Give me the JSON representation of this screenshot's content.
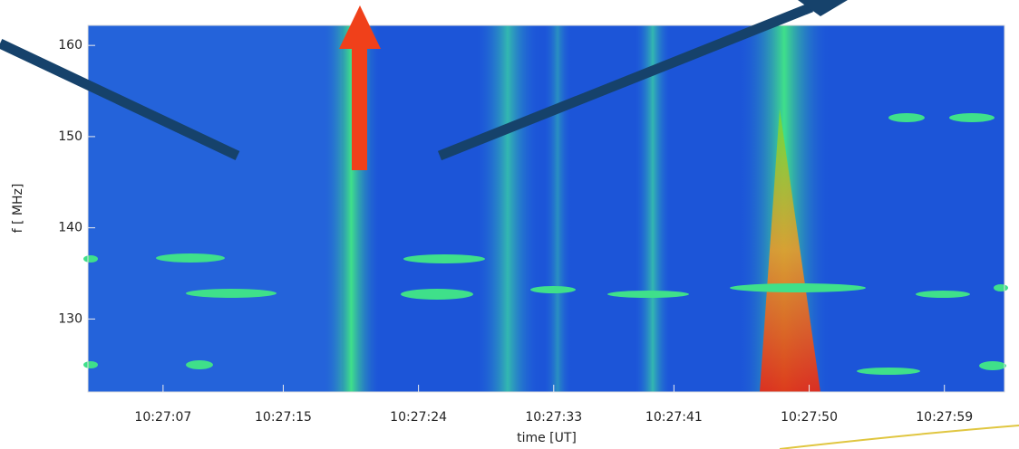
{
  "chart_data": {
    "type": "spectrogram",
    "xlabel": "time [UT]",
    "ylabel": "f [ MHz]",
    "xlim": [
      "10:27:02",
      "10:28:03"
    ],
    "xticks": [
      "10:27:07",
      "10:27:15",
      "10:27:24",
      "10:27:33",
      "10:27:41",
      "10:27:50",
      "10:27:59"
    ],
    "ylim": [
      122,
      162.2
    ],
    "yticks": [
      130,
      140,
      150,
      160
    ]
  }
}
